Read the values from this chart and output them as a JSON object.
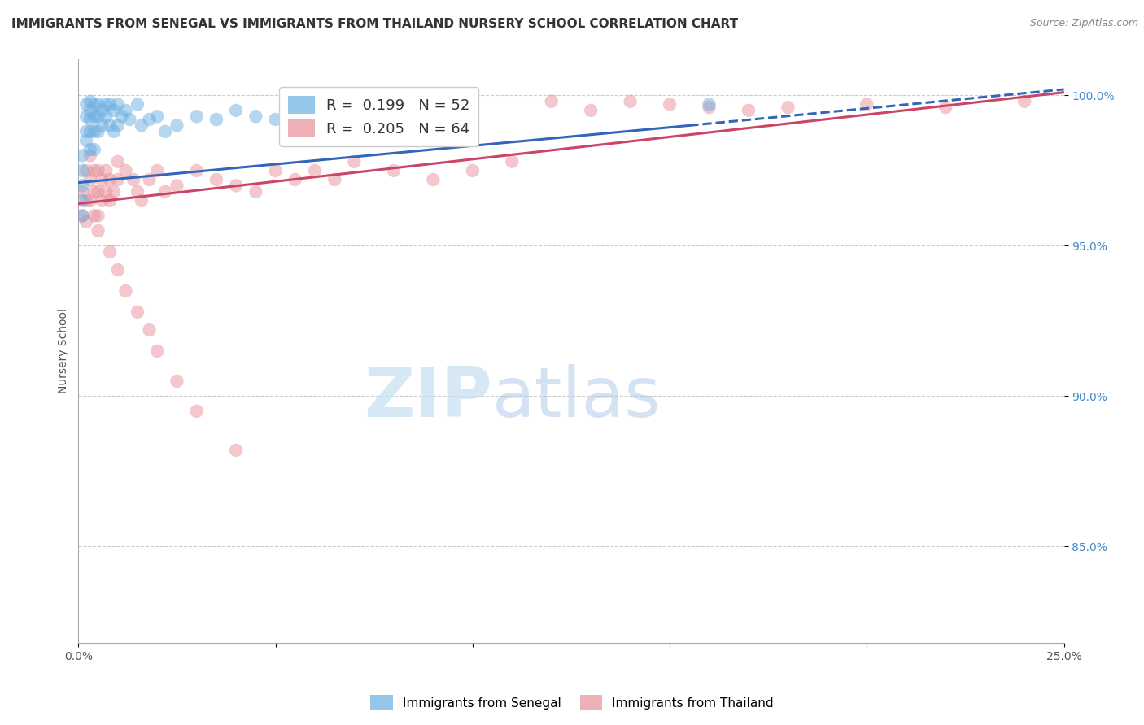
{
  "title": "IMMIGRANTS FROM SENEGAL VS IMMIGRANTS FROM THAILAND NURSERY SCHOOL CORRELATION CHART",
  "source": "Source: ZipAtlas.com",
  "ylabel": "Nursery School",
  "xlim": [
    0.0,
    0.25
  ],
  "ylim": [
    0.818,
    1.012
  ],
  "xticks": [
    0.0,
    0.05,
    0.1,
    0.15,
    0.2,
    0.25
  ],
  "xticklabels": [
    "0.0%",
    "",
    "",
    "",
    "",
    "25.0%"
  ],
  "yticks": [
    0.85,
    0.9,
    0.95,
    1.0
  ],
  "yticklabels": [
    "85.0%",
    "90.0%",
    "95.0%",
    "100.0%"
  ],
  "senegal_color": "#6aaee0",
  "thailand_color": "#e8909a",
  "senegal_R": 0.199,
  "senegal_N": 52,
  "thailand_R": 0.205,
  "thailand_N": 64,
  "senegal_x": [
    0.001,
    0.001,
    0.001,
    0.001,
    0.001,
    0.002,
    0.002,
    0.002,
    0.002,
    0.003,
    0.003,
    0.003,
    0.003,
    0.003,
    0.004,
    0.004,
    0.004,
    0.004,
    0.005,
    0.005,
    0.005,
    0.006,
    0.006,
    0.007,
    0.007,
    0.008,
    0.008,
    0.009,
    0.009,
    0.01,
    0.01,
    0.011,
    0.012,
    0.013,
    0.015,
    0.016,
    0.018,
    0.02,
    0.022,
    0.025,
    0.03,
    0.035,
    0.04,
    0.045,
    0.05,
    0.055,
    0.06,
    0.07,
    0.08,
    0.09,
    0.1,
    0.16
  ],
  "senegal_y": [
    0.98,
    0.975,
    0.97,
    0.965,
    0.96,
    0.997,
    0.993,
    0.988,
    0.985,
    0.998,
    0.995,
    0.992,
    0.988,
    0.982,
    0.997,
    0.993,
    0.988,
    0.982,
    0.997,
    0.993,
    0.988,
    0.995,
    0.99,
    0.997,
    0.993,
    0.997,
    0.99,
    0.995,
    0.988,
    0.997,
    0.99,
    0.993,
    0.995,
    0.992,
    0.997,
    0.99,
    0.992,
    0.993,
    0.988,
    0.99,
    0.993,
    0.992,
    0.995,
    0.993,
    0.992,
    0.99,
    0.993,
    0.993,
    0.992,
    0.995,
    0.993,
    0.997
  ],
  "thailand_x": [
    0.001,
    0.001,
    0.002,
    0.002,
    0.002,
    0.003,
    0.003,
    0.003,
    0.004,
    0.004,
    0.004,
    0.005,
    0.005,
    0.005,
    0.006,
    0.006,
    0.007,
    0.007,
    0.008,
    0.008,
    0.009,
    0.01,
    0.01,
    0.012,
    0.014,
    0.015,
    0.016,
    0.018,
    0.02,
    0.022,
    0.025,
    0.03,
    0.035,
    0.04,
    0.045,
    0.05,
    0.055,
    0.06,
    0.065,
    0.07,
    0.08,
    0.09,
    0.1,
    0.11,
    0.12,
    0.13,
    0.14,
    0.15,
    0.16,
    0.17,
    0.18,
    0.2,
    0.22,
    0.24,
    0.005,
    0.008,
    0.01,
    0.012,
    0.015,
    0.018,
    0.02,
    0.025,
    0.03,
    0.04
  ],
  "thailand_y": [
    0.968,
    0.96,
    0.975,
    0.965,
    0.958,
    0.98,
    0.972,
    0.965,
    0.975,
    0.968,
    0.96,
    0.975,
    0.968,
    0.96,
    0.972,
    0.965,
    0.975,
    0.968,
    0.972,
    0.965,
    0.968,
    0.978,
    0.972,
    0.975,
    0.972,
    0.968,
    0.965,
    0.972,
    0.975,
    0.968,
    0.97,
    0.975,
    0.972,
    0.97,
    0.968,
    0.975,
    0.972,
    0.975,
    0.972,
    0.978,
    0.975,
    0.972,
    0.975,
    0.978,
    0.998,
    0.995,
    0.998,
    0.997,
    0.996,
    0.995,
    0.996,
    0.997,
    0.996,
    0.998,
    0.955,
    0.948,
    0.942,
    0.935,
    0.928,
    0.922,
    0.915,
    0.905,
    0.895,
    0.882
  ],
  "senegal_line_x0": 0.0,
  "senegal_line_x1": 0.155,
  "senegal_line_y0": 0.971,
  "senegal_line_y1": 0.99,
  "senegal_line_ext_x0": 0.155,
  "senegal_line_ext_x1": 0.25,
  "senegal_line_ext_y0": 0.99,
  "senegal_line_ext_y1": 1.002,
  "thailand_line_x0": 0.0,
  "thailand_line_x1": 0.25,
  "thailand_line_y0": 0.964,
  "thailand_line_y1": 1.001,
  "watermark_zip": "ZIP",
  "watermark_atlas": "atlas",
  "title_fontsize": 11,
  "axis_label_fontsize": 10,
  "tick_fontsize": 10,
  "legend_fontsize": 13
}
